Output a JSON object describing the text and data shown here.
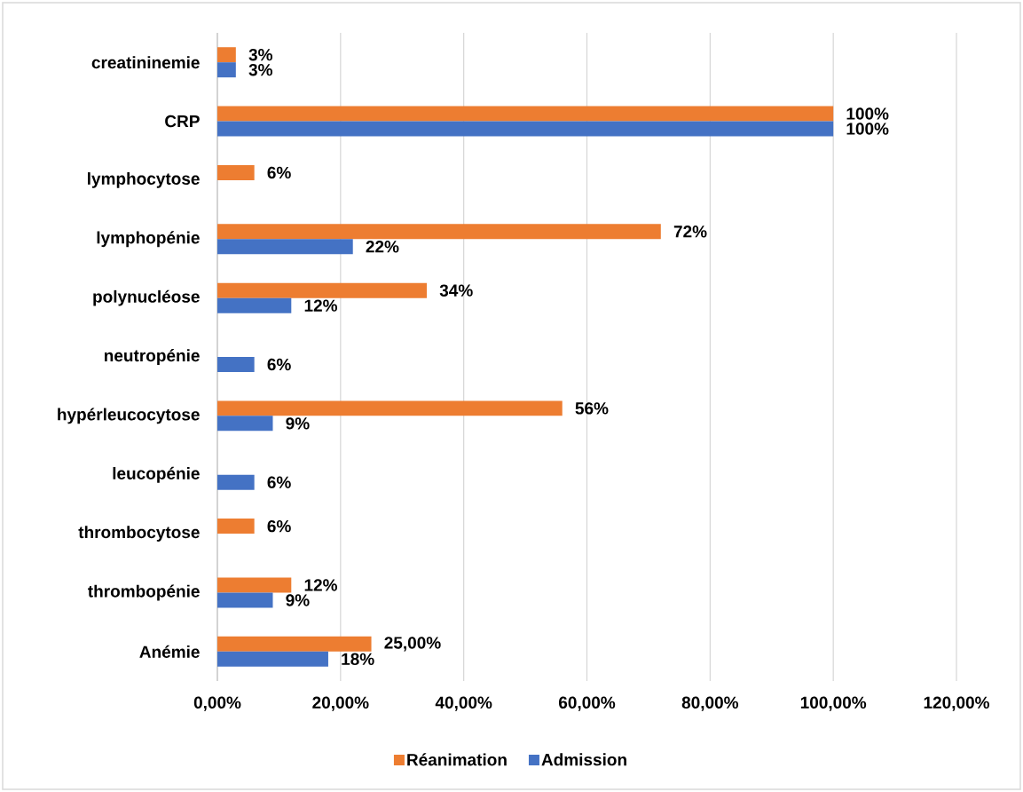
{
  "chart_data": {
    "type": "bar",
    "orientation": "horizontal",
    "categories": [
      "creatininemie",
      "CRP",
      "lymphocytose",
      "lymphopénie",
      "polynucléose",
      "neutropénie",
      "hypérleucocytose",
      "leucopénie",
      "thrombocytose",
      "thrombopénie",
      "Anémie"
    ],
    "series": [
      {
        "name": "Réanimation",
        "color": "#ed7d31",
        "values": [
          3,
          100,
          6,
          72,
          34,
          null,
          56,
          null,
          6,
          12,
          25
        ],
        "value_labels": [
          "3%",
          "100%",
          "6%",
          "72%",
          "34%",
          null,
          "56%",
          null,
          "6%",
          "12%",
          "25,00%"
        ]
      },
      {
        "name": "Admission",
        "color": "#4472c4",
        "values": [
          3,
          100,
          null,
          22,
          12,
          6,
          9,
          6,
          null,
          9,
          18
        ],
        "value_labels": [
          "3%",
          "100%",
          null,
          "22%",
          "12%",
          "6%",
          "9%",
          "6%",
          null,
          "9%",
          "18%"
        ]
      }
    ],
    "xlim": [
      0,
      120
    ],
    "xticks": [
      {
        "value": 0,
        "label": "0,00%"
      },
      {
        "value": 20,
        "label": "20,00%"
      },
      {
        "value": 40,
        "label": "40,00%"
      },
      {
        "value": 60,
        "label": "60,00%"
      },
      {
        "value": 80,
        "label": "80,00%"
      },
      {
        "value": 100,
        "label": "100,00%"
      },
      {
        "value": 120,
        "label": "120,00%"
      }
    ],
    "grid": "x",
    "legend": "bottom"
  }
}
